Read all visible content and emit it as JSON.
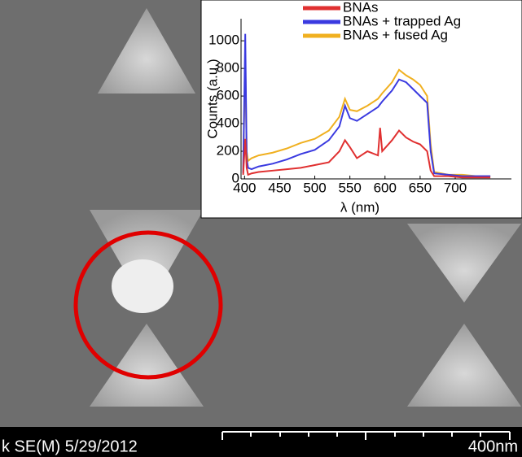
{
  "chart_data": {
    "type": "line",
    "x": [
      398,
      401,
      403,
      405,
      410,
      420,
      440,
      460,
      480,
      500,
      520,
      535,
      543,
      550,
      560,
      575,
      590,
      593,
      596,
      610,
      620,
      630,
      640,
      650,
      660,
      665,
      670,
      690,
      710,
      730,
      750
    ],
    "series": [
      {
        "name": "BNAs",
        "color": "#e03030",
        "values": [
          30,
          290,
          80,
          30,
          40,
          50,
          60,
          70,
          80,
          100,
          120,
          200,
          280,
          230,
          150,
          200,
          170,
          370,
          200,
          280,
          350,
          300,
          270,
          250,
          200,
          60,
          20,
          20,
          10,
          10,
          10
        ]
      },
      {
        "name": "BNAs + trapped Ag",
        "color": "#3a3ae0",
        "values": [
          40,
          1050,
          150,
          80,
          70,
          90,
          110,
          140,
          180,
          210,
          280,
          380,
          530,
          440,
          420,
          470,
          520,
          540,
          560,
          640,
          720,
          700,
          650,
          600,
          550,
          200,
          40,
          30,
          20,
          20,
          20
        ]
      },
      {
        "name": "BNAs + fused Ag",
        "color": "#f0b020",
        "values": [
          50,
          880,
          200,
          130,
          150,
          170,
          190,
          220,
          260,
          290,
          350,
          450,
          580,
          500,
          490,
          530,
          580,
          600,
          620,
          700,
          790,
          750,
          720,
          680,
          600,
          250,
          50,
          30,
          30,
          20,
          20
        ]
      }
    ],
    "x_label": "λ (nm)",
    "y_label": "Counts (a.u.)",
    "xlim": [
      395,
      780
    ],
    "ylim": [
      0,
      1160
    ],
    "xticks": [
      400,
      450,
      500,
      550,
      600,
      650,
      700
    ],
    "yticks": [
      0,
      200,
      400,
      600,
      800,
      1000
    ],
    "legend": "top"
  },
  "image": {
    "info": "k SE(M) 5/29/2012",
    "scale_bar": "400nm"
  }
}
